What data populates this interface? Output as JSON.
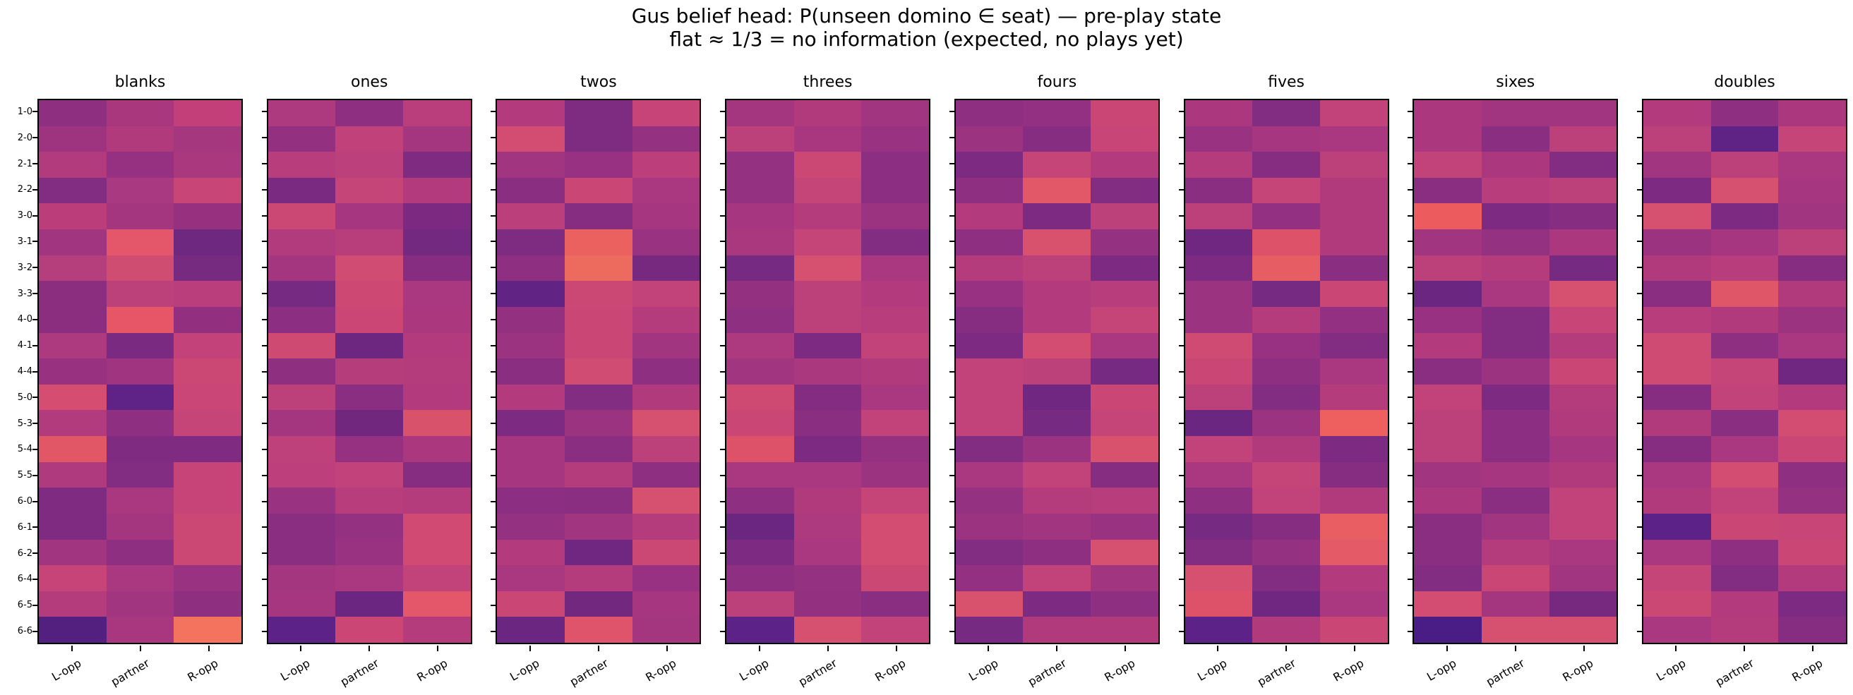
{
  "figure": {
    "suptitle_line1": "Gus belief head: P(unseen domino ∈ seat) — pre-play state",
    "suptitle_line2": "flat ≈ 1/3 = no information (expected, no plays yet)",
    "background_color": "#ffffff",
    "spine_color": "#000000",
    "text_color": "#000000"
  },
  "chart_data": {
    "type": "heatmap",
    "colormap": "magma",
    "legend_position": "none",
    "grid": false,
    "row_labels": [
      "1-0",
      "2-0",
      "2-1",
      "2-2",
      "3-0",
      "3-1",
      "3-2",
      "3-3",
      "4-0",
      "4-1",
      "4-4",
      "5-0",
      "5-3",
      "5-4",
      "5-5",
      "6-0",
      "6-1",
      "6-2",
      "6-4",
      "6-5",
      "6-6"
    ],
    "col_labels": [
      "L-opp",
      "partner",
      "R-opp"
    ],
    "subplots": [
      {
        "title": "blanks",
        "cells": [
          [
            "#8e2f80",
            "#a8377e",
            "#c33f79"
          ],
          [
            "#9e3380",
            "#b13a7d",
            "#a5377f"
          ],
          [
            "#b23b7d",
            "#963181",
            "#aa387e"
          ],
          [
            "#822c82",
            "#a93980",
            "#c84577"
          ],
          [
            "#bb3e7b",
            "#a4367f",
            "#97317f"
          ],
          [
            "#a1357f",
            "#e4566a",
            "#6f2880"
          ],
          [
            "#b53e7c",
            "#d04d72",
            "#762a80"
          ],
          [
            "#8c2e80",
            "#bc407a",
            "#b93e7b"
          ],
          [
            "#8c2e80",
            "#e65666",
            "#92307f"
          ],
          [
            "#ad397e",
            "#7b2a81",
            "#c4427a"
          ],
          [
            "#983280",
            "#a03480",
            "#cb4875"
          ],
          [
            "#d54e71",
            "#5f2387",
            "#ca4676"
          ],
          [
            "#b13b7d",
            "#8e2f81",
            "#c64578"
          ],
          [
            "#e25766",
            "#7f2b82",
            "#7f2b82"
          ],
          [
            "#b03a7e",
            "#822c82",
            "#c64477"
          ],
          [
            "#7e2b81",
            "#a93880",
            "#c64477"
          ],
          [
            "#7e2b81",
            "#a3367f",
            "#cc4874"
          ],
          [
            "#a13580",
            "#8e2f81",
            "#cc4874"
          ],
          [
            "#c64477",
            "#a93880",
            "#993281"
          ],
          [
            "#b53c7c",
            "#a2357f",
            "#8e2f80"
          ],
          [
            "#54207f",
            "#a83780",
            "#f4735f"
          ]
        ]
      },
      {
        "title": "ones",
        "cells": [
          [
            "#ad397e",
            "#8e2f81",
            "#b93e7b"
          ],
          [
            "#93307f",
            "#c1427a",
            "#a3367f"
          ],
          [
            "#b73d7c",
            "#bc407b",
            "#7f2b82"
          ],
          [
            "#7b2a82",
            "#c64578",
            "#b33b7d"
          ],
          [
            "#cc4874",
            "#a5367f",
            "#7c2a81"
          ],
          [
            "#b23b7d",
            "#b83d7b",
            "#742980"
          ],
          [
            "#a3367f",
            "#d14c72",
            "#862d81"
          ],
          [
            "#772a81",
            "#cd4973",
            "#a93880"
          ],
          [
            "#8c2e81",
            "#cb4675",
            "#ab387e"
          ],
          [
            "#ce4a73",
            "#6e2781",
            "#b23a7d"
          ],
          [
            "#8e2f80",
            "#b63d7c",
            "#b43c7d"
          ],
          [
            "#bc407a",
            "#8a2e81",
            "#b33b7d"
          ],
          [
            "#a3367f",
            "#72277f",
            "#d9526c"
          ],
          [
            "#bf417b",
            "#963181",
            "#ab387e"
          ],
          [
            "#bd3f7b",
            "#c2437b",
            "#862d81"
          ],
          [
            "#983281",
            "#b73d7c",
            "#b53c7c"
          ],
          [
            "#8a2e81",
            "#953181",
            "#d04a73"
          ],
          [
            "#8a2e81",
            "#983281",
            "#d04a73"
          ],
          [
            "#a3367f",
            "#a93880",
            "#c2427a"
          ],
          [
            "#a5367f",
            "#6b2682",
            "#e4566a"
          ],
          [
            "#5c2287",
            "#cb4675",
            "#b53c7c"
          ]
        ]
      },
      {
        "title": "twos",
        "cells": [
          [
            "#b33b7d",
            "#7e2b82",
            "#c64477"
          ],
          [
            "#d24d71",
            "#7e2b82",
            "#953181"
          ],
          [
            "#a1357f",
            "#983181",
            "#bc3f7b"
          ],
          [
            "#8a2e81",
            "#ca4675",
            "#a93880"
          ],
          [
            "#bb3f7b",
            "#862d81",
            "#a5367f"
          ],
          [
            "#7e2b82",
            "#ea6160",
            "#993281"
          ],
          [
            "#8e2f81",
            "#ed6a5e",
            "#76297f"
          ],
          [
            "#622484",
            "#cc4874",
            "#c2427a"
          ],
          [
            "#93307f",
            "#ca4675",
            "#b53c7c"
          ],
          [
            "#9c3380",
            "#c94675",
            "#a2357f"
          ],
          [
            "#8a2e81",
            "#d14c72",
            "#8e2f81"
          ],
          [
            "#b33b7d",
            "#822c82",
            "#b13a7d"
          ],
          [
            "#7c2a82",
            "#9c3380",
            "#d6506f"
          ],
          [
            "#a5367f",
            "#8a2e81",
            "#bc407a"
          ],
          [
            "#a5367f",
            "#b53c7c",
            "#8e2f81"
          ],
          [
            "#8c2e81",
            "#8a2e81",
            "#d6506f"
          ],
          [
            "#953181",
            "#a1357f",
            "#b53c7c"
          ],
          [
            "#b33b7d",
            "#6f2781",
            "#cc4874"
          ],
          [
            "#a93880",
            "#b53c7c",
            "#983181"
          ],
          [
            "#ca4675",
            "#732880",
            "#a5367f"
          ],
          [
            "#6b2682",
            "#e0546b",
            "#a3367f"
          ]
        ]
      },
      {
        "title": "threes",
        "cells": [
          [
            "#a3367f",
            "#b13a7d",
            "#a2357f"
          ],
          [
            "#bc407a",
            "#a83780",
            "#993281"
          ],
          [
            "#953181",
            "#cc4874",
            "#8c2e81"
          ],
          [
            "#953181",
            "#c64578",
            "#8c2e81"
          ],
          [
            "#a5367f",
            "#b53c7c",
            "#9c3380"
          ],
          [
            "#aa387e",
            "#c64578",
            "#822c82"
          ],
          [
            "#762a81",
            "#d6506f",
            "#a93880"
          ],
          [
            "#933080",
            "#bc407a",
            "#b33b7d"
          ],
          [
            "#8e2f81",
            "#bc407a",
            "#b73d7c"
          ],
          [
            "#ad397e",
            "#7c2a82",
            "#c2427a"
          ],
          [
            "#a1357f",
            "#aa387e",
            "#b13a7d"
          ],
          [
            "#ce4a73",
            "#832c81",
            "#a93880"
          ],
          [
            "#ca4675",
            "#8a2e81",
            "#c2427a"
          ],
          [
            "#dd5269",
            "#7c2a82",
            "#953181"
          ],
          [
            "#a93880",
            "#a93880",
            "#9c3380"
          ],
          [
            "#8e2f81",
            "#b13a7d",
            "#c64578"
          ],
          [
            "#6b2682",
            "#ad397e",
            "#d24d71"
          ],
          [
            "#7c2a82",
            "#a93880",
            "#d24d71"
          ],
          [
            "#8e2f81",
            "#953181",
            "#cc4874"
          ],
          [
            "#bc407a",
            "#933080",
            "#8a2e81"
          ],
          [
            "#5c2287",
            "#d6506f",
            "#c2427a"
          ]
        ]
      },
      {
        "title": "fours",
        "cells": [
          [
            "#8e2f81",
            "#933081",
            "#ca4675"
          ],
          [
            "#9c3380",
            "#862d81",
            "#c84577"
          ],
          [
            "#7c2a82",
            "#c64578",
            "#b33b7d"
          ],
          [
            "#8e2f81",
            "#e25868",
            "#822c82"
          ],
          [
            "#b33b7d",
            "#7c2a82",
            "#bc407a"
          ],
          [
            "#8e2f81",
            "#d9526d",
            "#953181"
          ],
          [
            "#b53c7c",
            "#bc407a",
            "#7c2a82"
          ],
          [
            "#983181",
            "#b33b7d",
            "#b73d7c"
          ],
          [
            "#862d81",
            "#b33b7d",
            "#c64578"
          ],
          [
            "#7c2a82",
            "#d24d71",
            "#a93880"
          ],
          [
            "#c2427a",
            "#bc407a",
            "#762a81"
          ],
          [
            "#c2427a",
            "#6f2781",
            "#ca4675"
          ],
          [
            "#c2427a",
            "#762a81",
            "#c64578"
          ],
          [
            "#822c82",
            "#9c3380",
            "#d9526d"
          ],
          [
            "#a93880",
            "#c2427a",
            "#862d81"
          ],
          [
            "#953181",
            "#b53c7c",
            "#b73d7c"
          ],
          [
            "#9c3380",
            "#a1357f",
            "#993281"
          ],
          [
            "#822c82",
            "#8e2f81",
            "#d6506f"
          ],
          [
            "#933081",
            "#c2427a",
            "#a1357f"
          ],
          [
            "#d9526d",
            "#7c2a82",
            "#8e2f81"
          ],
          [
            "#762a81",
            "#b13a7d",
            "#b13a7d"
          ]
        ]
      },
      {
        "title": "fives",
        "cells": [
          [
            "#ab387e",
            "#822c82",
            "#c2427a"
          ],
          [
            "#993281",
            "#a5367f",
            "#a93880"
          ],
          [
            "#b53c7c",
            "#862d81",
            "#bc407a"
          ],
          [
            "#8a2e81",
            "#c64578",
            "#b13a7d"
          ],
          [
            "#bc407a",
            "#933081",
            "#b13a7d"
          ],
          [
            "#6f2781",
            "#dd5269",
            "#b13a7d"
          ],
          [
            "#7c2a82",
            "#e65e64",
            "#8a2e81"
          ],
          [
            "#9c3380",
            "#762a81",
            "#ca4675"
          ],
          [
            "#9c3380",
            "#b53c7c",
            "#933081"
          ],
          [
            "#d04b73",
            "#983181",
            "#822c82"
          ],
          [
            "#ca4675",
            "#8e2f81",
            "#a93880"
          ],
          [
            "#bc407a",
            "#822c82",
            "#b53c7c"
          ],
          [
            "#6b2682",
            "#9c3380",
            "#ee6060"
          ],
          [
            "#c2427a",
            "#b13a7d",
            "#7c2a82"
          ],
          [
            "#a93880",
            "#c64578",
            "#862d81"
          ],
          [
            "#8e2f81",
            "#c2427a",
            "#b13a7d"
          ],
          [
            "#762a81",
            "#862d81",
            "#e85e63"
          ],
          [
            "#822c82",
            "#953181",
            "#e45a66"
          ],
          [
            "#d6506f",
            "#822c82",
            "#b33b7d"
          ],
          [
            "#dd5269",
            "#6f2781",
            "#a93880"
          ],
          [
            "#5c2287",
            "#b13a7d",
            "#ca4675"
          ]
        ]
      },
      {
        "title": "sixes",
        "cells": [
          [
            "#ab387e",
            "#a1357f",
            "#a1357f"
          ],
          [
            "#ab387e",
            "#8a2e81",
            "#bc407a"
          ],
          [
            "#c2427a",
            "#ab387e",
            "#822c82"
          ],
          [
            "#8a2e81",
            "#b73d7c",
            "#bc407a"
          ],
          [
            "#ec5c5f",
            "#7c2a82",
            "#862d81"
          ],
          [
            "#a1357f",
            "#953181",
            "#ab387e"
          ],
          [
            "#bc407a",
            "#b53c7c",
            "#762a81"
          ],
          [
            "#6b2682",
            "#a93880",
            "#d6506f"
          ],
          [
            "#983181",
            "#822c82",
            "#c84577"
          ],
          [
            "#b33b7d",
            "#822c82",
            "#b53c7c"
          ],
          [
            "#8a2e81",
            "#9c3380",
            "#ca4675"
          ],
          [
            "#c2427a",
            "#7c2a82",
            "#b53c7c"
          ],
          [
            "#bc407a",
            "#8c2e81",
            "#b13a7d"
          ],
          [
            "#bc407a",
            "#8c2e81",
            "#a5367f"
          ],
          [
            "#a1357f",
            "#a5367f",
            "#b13a7d"
          ],
          [
            "#ab387e",
            "#8a2e81",
            "#c2427a"
          ],
          [
            "#8a2e81",
            "#a1357f",
            "#c2427a"
          ],
          [
            "#8a2e81",
            "#b53c7c",
            "#a93880"
          ],
          [
            "#822c82",
            "#ca4675",
            "#a1357f"
          ],
          [
            "#d24d71",
            "#a3367f",
            "#76297f"
          ],
          [
            "#491d85",
            "#d6506f",
            "#d6506f"
          ]
        ]
      },
      {
        "title": "doubles",
        "cells": [
          [
            "#b33b7d",
            "#8e2f81",
            "#ab387e"
          ],
          [
            "#bc407a",
            "#5f2386",
            "#c64578"
          ],
          [
            "#a1357f",
            "#bc407a",
            "#a93880"
          ],
          [
            "#7c2a82",
            "#d6506f",
            "#a5367f"
          ],
          [
            "#d6506f",
            "#7c2a82",
            "#a1357f"
          ],
          [
            "#9c3380",
            "#a5367f",
            "#bc407a"
          ],
          [
            "#b13a7d",
            "#b73d7c",
            "#862d81"
          ],
          [
            "#8a2e81",
            "#e05669",
            "#b13a7d"
          ],
          [
            "#b73d7c",
            "#b13a7d",
            "#9c3380"
          ],
          [
            "#d04b73",
            "#8e2f81",
            "#a93880"
          ],
          [
            "#d04b73",
            "#c64578",
            "#6f2781"
          ],
          [
            "#862d81",
            "#c2427a",
            "#b33b7d"
          ],
          [
            "#b13a7d",
            "#8a2e81",
            "#d24d71"
          ],
          [
            "#862d81",
            "#a93880",
            "#ca4675"
          ],
          [
            "#a93880",
            "#d24d71",
            "#8e2f81"
          ],
          [
            "#b13a7d",
            "#c2427a",
            "#953181"
          ],
          [
            "#5c2287",
            "#ca4675",
            "#c84577"
          ],
          [
            "#a93880",
            "#8e2f81",
            "#ca4675"
          ],
          [
            "#c64578",
            "#822c82",
            "#b33b7d"
          ],
          [
            "#cc4874",
            "#b33b7d",
            "#7c2a82"
          ],
          [
            "#a93880",
            "#b53c7c",
            "#862d81"
          ]
        ]
      }
    ]
  }
}
